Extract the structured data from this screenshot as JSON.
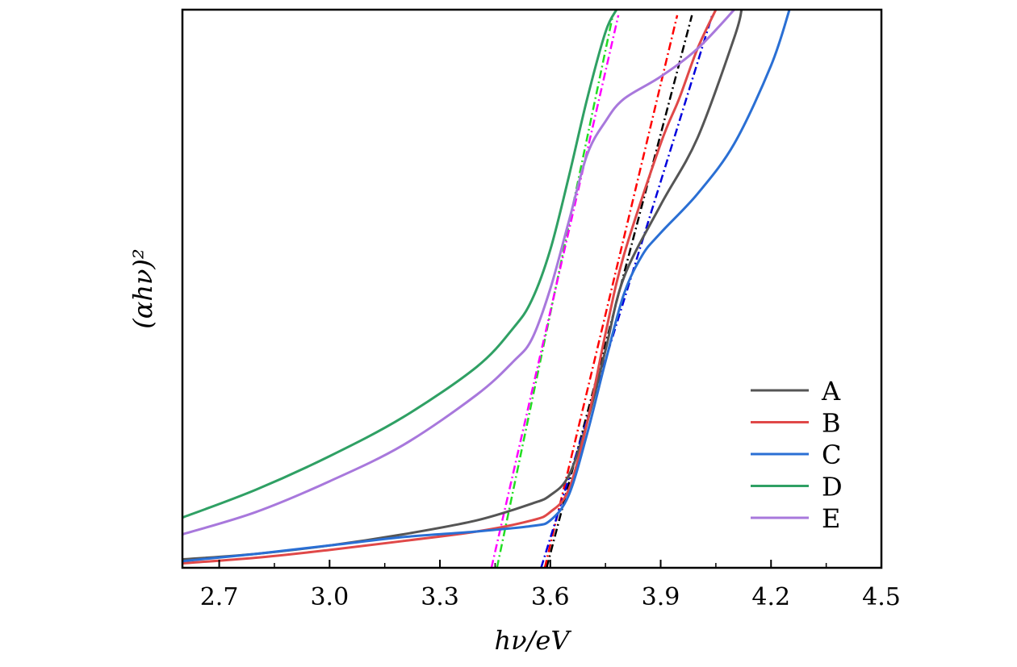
{
  "chart_data": {
    "type": "line",
    "xlabel": "hν/eV",
    "ylabel": "(αhν)²",
    "xlim": [
      2.6,
      4.5
    ],
    "ylim": [
      0,
      1
    ],
    "x_ticks": [
      "2.7",
      "3.0",
      "3.3",
      "3.6",
      "3.9",
      "4.2",
      "4.5"
    ],
    "y_ticks_shown": false,
    "legend_position": "bottom-right",
    "series": [
      {
        "name": "A",
        "color": "#555555",
        "x": [
          2.6,
          2.8,
          3.0,
          3.2,
          3.4,
          3.55,
          3.6,
          3.65,
          3.7,
          3.75,
          3.8,
          3.9,
          4.0,
          4.1,
          4.12
        ],
        "y": [
          0.015,
          0.025,
          0.04,
          0.06,
          0.085,
          0.115,
          0.13,
          0.165,
          0.26,
          0.39,
          0.52,
          0.65,
          0.77,
          0.95,
          1.0
        ]
      },
      {
        "name": "B",
        "color": "#e04848",
        "x": [
          2.6,
          2.8,
          3.0,
          3.2,
          3.4,
          3.55,
          3.6,
          3.65,
          3.7,
          3.75,
          3.8,
          3.9,
          3.95,
          4.0,
          4.05
        ],
        "y": [
          0.008,
          0.018,
          0.032,
          0.048,
          0.065,
          0.085,
          0.1,
          0.14,
          0.26,
          0.42,
          0.56,
          0.76,
          0.84,
          0.93,
          1.0
        ]
      },
      {
        "name": "C",
        "color": "#2a6fd4",
        "x": [
          2.6,
          2.8,
          3.0,
          3.2,
          3.4,
          3.55,
          3.6,
          3.65,
          3.7,
          3.75,
          3.8,
          3.85,
          3.9,
          4.0,
          4.1,
          4.2,
          4.25
        ],
        "y": [
          0.012,
          0.025,
          0.04,
          0.055,
          0.065,
          0.075,
          0.085,
          0.13,
          0.24,
          0.37,
          0.49,
          0.56,
          0.6,
          0.67,
          0.76,
          0.9,
          1.0
        ]
      },
      {
        "name": "D",
        "color": "#2fa064",
        "x": [
          2.6,
          2.8,
          3.0,
          3.2,
          3.4,
          3.5,
          3.55,
          3.6,
          3.65,
          3.7,
          3.75,
          3.78
        ],
        "y": [
          0.09,
          0.14,
          0.2,
          0.27,
          0.36,
          0.43,
          0.48,
          0.57,
          0.7,
          0.84,
          0.96,
          1.0
        ]
      },
      {
        "name": "E",
        "color": "#a878dc",
        "x": [
          2.6,
          2.8,
          3.0,
          3.2,
          3.4,
          3.5,
          3.55,
          3.6,
          3.65,
          3.7,
          3.75,
          3.8,
          3.9,
          4.0,
          4.1
        ],
        "y": [
          0.06,
          0.1,
          0.155,
          0.22,
          0.31,
          0.37,
          0.41,
          0.5,
          0.62,
          0.74,
          0.8,
          0.84,
          0.88,
          0.93,
          1.0
        ]
      }
    ],
    "fit_lines": [
      {
        "for": "A",
        "color": "#000000",
        "x": [
          3.59,
          3.985
        ],
        "y": [
          0.0,
          0.99
        ]
      },
      {
        "for": "B",
        "color": "#ff0000",
        "x": [
          3.585,
          3.945
        ],
        "y": [
          0.0,
          0.99
        ]
      },
      {
        "for": "C",
        "color": "#0000dd",
        "x": [
          3.575,
          4.04
        ],
        "y": [
          0.0,
          0.99
        ]
      },
      {
        "for": "D",
        "color": "#22dd22",
        "x": [
          3.455,
          3.77
        ],
        "y": [
          0.0,
          0.99
        ]
      },
      {
        "for": "E",
        "color": "#ff00ff",
        "x": [
          3.44,
          3.785
        ],
        "y": [
          0.0,
          0.99
        ]
      }
    ]
  }
}
